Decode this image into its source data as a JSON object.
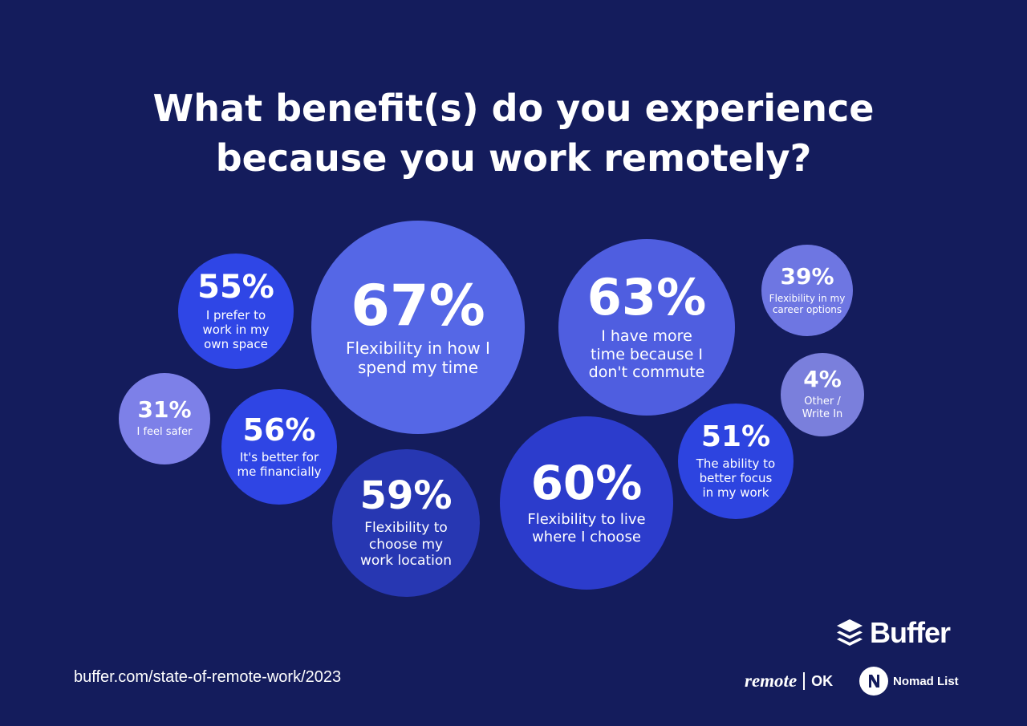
{
  "title": {
    "line1": "What benefit(s) do you experience",
    "line2": "because you work remotely?"
  },
  "chart_data": {
    "type": "bubble",
    "unit": "%",
    "items": [
      {
        "value": 55,
        "label": "I prefer to work in my own space",
        "lines": [
          "I prefer to",
          "work in my",
          "own space"
        ],
        "color": "#2f46e6"
      },
      {
        "value": 67,
        "label": "Flexibility in how I spend my time",
        "lines": [
          "Flexibility in how I",
          "spend my time"
        ],
        "color": "#5567e6"
      },
      {
        "value": 63,
        "label": "I have more time because I don't commute",
        "lines": [
          "I have more",
          "time because I",
          "don't commute"
        ],
        "color": "#4f5ee0"
      },
      {
        "value": 39,
        "label": "Flexibility in my career options",
        "lines": [
          "Flexibility in my",
          "career options"
        ],
        "color": "#6e76e2"
      },
      {
        "value": 31,
        "label": "I feel safer",
        "lines": [
          "I feel safer"
        ],
        "color": "#7d80e8"
      },
      {
        "value": 56,
        "label": "It's better for me financially",
        "lines": [
          "It's better for",
          "me financially"
        ],
        "color": "#2f45e4"
      },
      {
        "value": 4,
        "label": "Other / Write In",
        "lines": [
          "Other /",
          "Write In"
        ],
        "color": "#7a7fdc"
      },
      {
        "value": 51,
        "label": "The ability to better focus in my work",
        "lines": [
          "The ability to",
          "better focus",
          "in my work"
        ],
        "color": "#2d44e0"
      },
      {
        "value": 59,
        "label": "Flexibility to choose my work location",
        "lines": [
          "Flexibility to",
          "choose my",
          "work location"
        ],
        "color": "#2737b2"
      },
      {
        "value": 60,
        "label": "Flexibility to live where I choose",
        "lines": [
          "Flexibility to live",
          "where I choose"
        ],
        "color": "#2c3ccc"
      }
    ]
  },
  "footer": {
    "url": "buffer.com/state-of-remote-work/2023",
    "buffer_logo": "Buffer",
    "remote_logo_word": "remote",
    "remote_logo_suffix": "OK",
    "nomad_logo": "Nomad List"
  },
  "colors": {
    "background": "#141c5c"
  }
}
